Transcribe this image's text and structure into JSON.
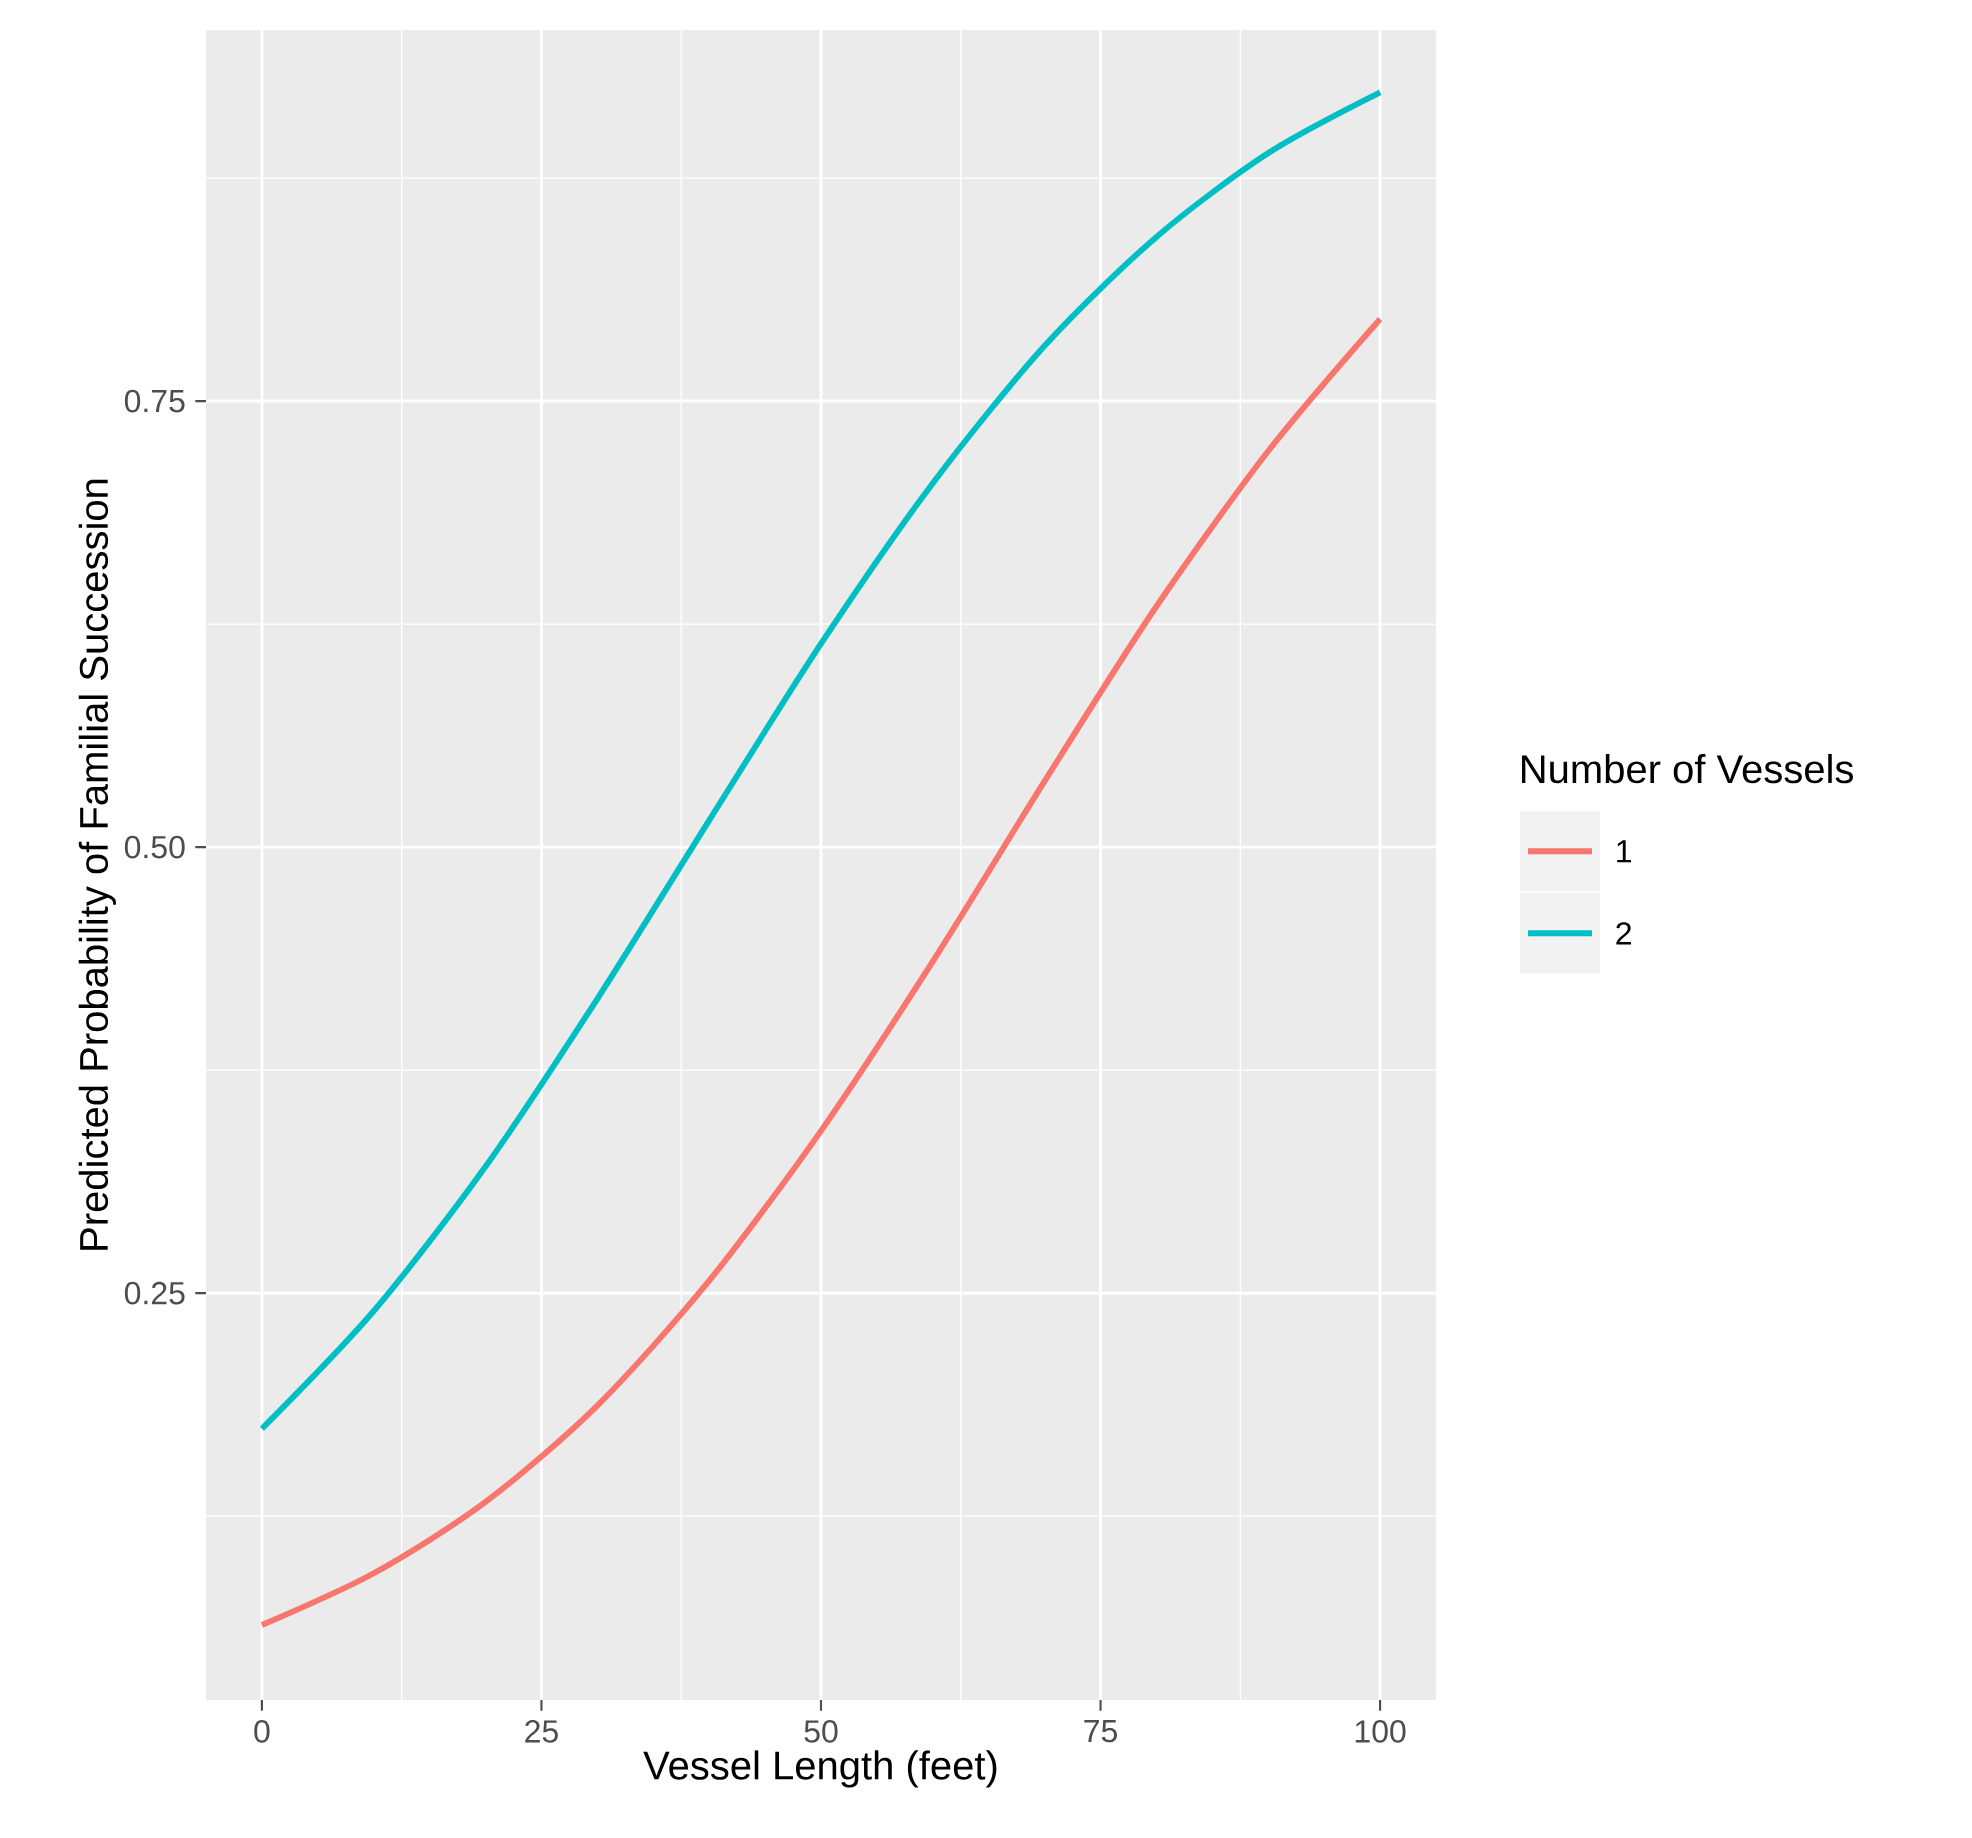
{
  "chart_data": {
    "type": "line",
    "xlabel": "Vessel Length (feet)",
    "ylabel": "Predicted Probability of Familial Succession",
    "legend_title": "Number of Vessels",
    "x": [
      0,
      10,
      20,
      30,
      40,
      50,
      60,
      70,
      80,
      90,
      100
    ],
    "series": [
      {
        "name": "1",
        "color": "#f8766d",
        "values": [
          0.064,
          0.093,
          0.133,
          0.187,
          0.257,
          0.341,
          0.436,
          0.537,
          0.635,
          0.722,
          0.796
        ]
      },
      {
        "name": "2",
        "color": "#00bfc4",
        "values": [
          0.174,
          0.24,
          0.321,
          0.415,
          0.515,
          0.614,
          0.704,
          0.781,
          0.842,
          0.889,
          0.923
        ]
      }
    ],
    "xlim": [
      -5,
      105
    ],
    "ylim": [
      0.022,
      0.958
    ],
    "xticks": [
      0,
      25,
      50,
      75,
      100
    ],
    "yticks": [
      {
        "value": 0.25,
        "label": "0.25"
      },
      {
        "value": 0.5,
        "label": "0.50"
      },
      {
        "value": 0.75,
        "label": "0.75"
      }
    ],
    "grid": true,
    "legend": "right",
    "line_style": "solid",
    "marker": "none"
  }
}
